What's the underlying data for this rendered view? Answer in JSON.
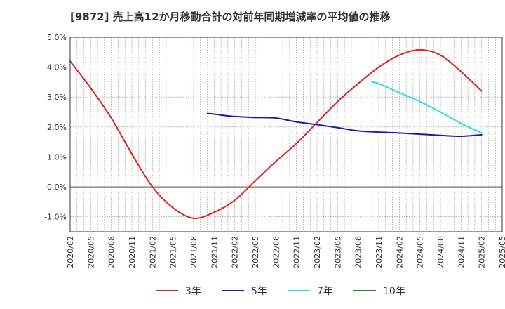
{
  "chart_data": {
    "type": "line",
    "title": "[9872]  売上高12か月移動合計の対前年同期増減率の平均値の推移",
    "xlabel": "",
    "ylabel": "",
    "ylim": [
      -1.5,
      5.0
    ],
    "yticks": [
      -1.0,
      0.0,
      1.0,
      2.0,
      3.0,
      4.0,
      5.0
    ],
    "ytick_labels": [
      "-1.0%",
      "0.0%",
      "1.0%",
      "2.0%",
      "3.0%",
      "4.0%",
      "5.0%"
    ],
    "xlim": [
      "2020/02",
      "2025/05"
    ],
    "xtick_labels": [
      "2020/02",
      "2020/05",
      "2020/08",
      "2020/11",
      "2021/02",
      "2021/05",
      "2021/08",
      "2021/11",
      "2022/02",
      "2022/05",
      "2022/08",
      "2022/11",
      "2023/02",
      "2023/05",
      "2023/08",
      "2023/11",
      "2024/02",
      "2024/05",
      "2024/08",
      "2024/11",
      "2025/02",
      "2025/05"
    ],
    "grid": true,
    "legend_position": "bottom",
    "series": [
      {
        "name": "3年",
        "color": "#dd2222",
        "points": [
          [
            "2020/02",
            4.2
          ],
          [
            "2020/05",
            3.3
          ],
          [
            "2020/08",
            2.3
          ],
          [
            "2020/11",
            1.1
          ],
          [
            "2021/02",
            0.0
          ],
          [
            "2021/05",
            -0.7
          ],
          [
            "2021/08",
            -1.05
          ],
          [
            "2021/11",
            -0.85
          ],
          [
            "2022/02",
            -0.45
          ],
          [
            "2022/05",
            0.2
          ],
          [
            "2022/08",
            0.85
          ],
          [
            "2022/11",
            1.45
          ],
          [
            "2023/02",
            2.15
          ],
          [
            "2023/05",
            2.85
          ],
          [
            "2023/08",
            3.45
          ],
          [
            "2023/11",
            4.0
          ],
          [
            "2024/02",
            4.4
          ],
          [
            "2024/05",
            4.58
          ],
          [
            "2024/08",
            4.4
          ],
          [
            "2024/11",
            3.85
          ],
          [
            "2025/02",
            3.2
          ]
        ]
      },
      {
        "name": "5年",
        "color": "#1a1aaa",
        "points": [
          [
            "2021/10",
            2.45
          ],
          [
            "2021/11",
            2.43
          ],
          [
            "2022/02",
            2.35
          ],
          [
            "2022/05",
            2.32
          ],
          [
            "2022/08",
            2.3
          ],
          [
            "2022/11",
            2.17
          ],
          [
            "2023/02",
            2.08
          ],
          [
            "2023/05",
            1.98
          ],
          [
            "2023/08",
            1.87
          ],
          [
            "2023/11",
            1.83
          ],
          [
            "2024/02",
            1.8
          ],
          [
            "2024/05",
            1.76
          ],
          [
            "2024/08",
            1.72
          ],
          [
            "2024/11",
            1.69
          ],
          [
            "2025/02",
            1.74
          ]
        ]
      },
      {
        "name": "7年",
        "color": "#22e0e8",
        "points": [
          [
            "2023/10",
            3.5
          ],
          [
            "2023/11",
            3.45
          ],
          [
            "2024/02",
            3.15
          ],
          [
            "2024/05",
            2.85
          ],
          [
            "2024/08",
            2.5
          ],
          [
            "2024/11",
            2.12
          ],
          [
            "2025/02",
            1.8
          ]
        ]
      },
      {
        "name": "10年",
        "color": "#228822",
        "points": []
      }
    ]
  }
}
